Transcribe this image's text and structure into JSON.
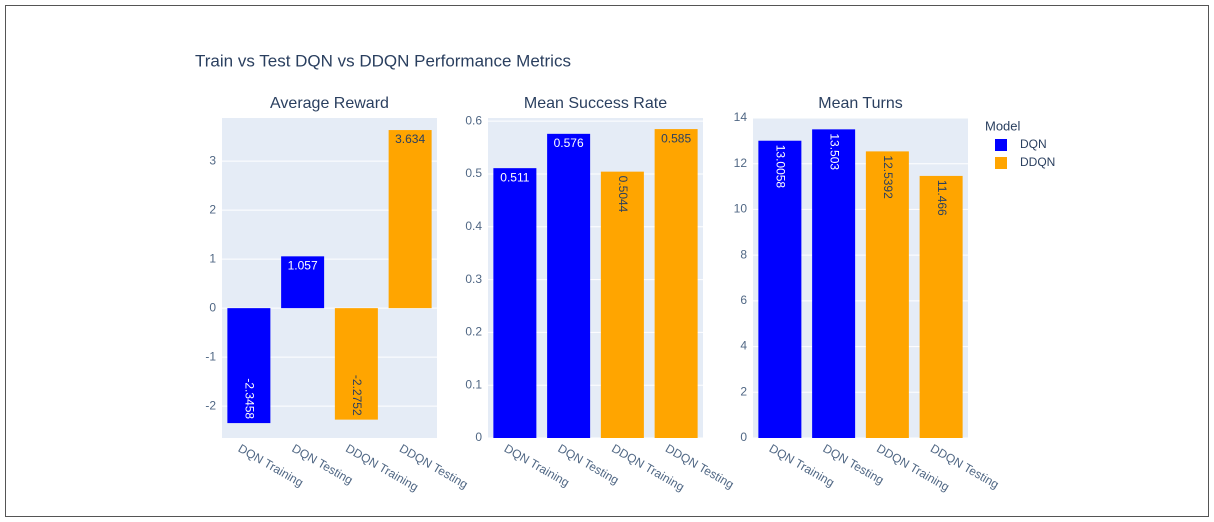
{
  "title": "Train vs Test DQN vs DDQN Performance Metrics",
  "legend_title": "Model",
  "chart_data": [
    {
      "type": "bar",
      "title": "Average Reward",
      "categories": [
        "DQN Training",
        "DQN Testing",
        "DDQN Training",
        "DDQN Testing"
      ],
      "series": [
        {
          "name": "DQN",
          "color": "#0000ff",
          "values": [
            -2.3458,
            1.057,
            null,
            null
          ]
        },
        {
          "name": "DDQN",
          "color": "#ffa500",
          "values": [
            null,
            null,
            -2.2752,
            3.634
          ]
        }
      ],
      "ylim": [
        -2.65,
        3.88
      ],
      "yticks": [
        -2,
        -1,
        0,
        1,
        2,
        3
      ],
      "grid": true
    },
    {
      "type": "bar",
      "title": "Mean Success Rate",
      "categories": [
        "DQN Training",
        "DQN Testing",
        "DDQN Training",
        "DDQN Testing"
      ],
      "series": [
        {
          "name": "DQN",
          "color": "#0000ff",
          "values": [
            0.511,
            0.576,
            null,
            null
          ]
        },
        {
          "name": "DDQN",
          "color": "#ffa500",
          "values": [
            null,
            null,
            0.5044,
            0.585
          ]
        }
      ],
      "ylim": [
        0,
        0.606
      ],
      "yticks": [
        0,
        0.1,
        0.2,
        0.3,
        0.4,
        0.5,
        0.6
      ],
      "grid": true
    },
    {
      "type": "bar",
      "title": "Mean Turns",
      "categories": [
        "DQN Training",
        "DQN Testing",
        "DDQN Training",
        "DDQN Testing"
      ],
      "series": [
        {
          "name": "DQN",
          "color": "#0000ff",
          "values": [
            13.0058,
            13.503,
            null,
            null
          ]
        },
        {
          "name": "DDQN",
          "color": "#ffa500",
          "values": [
            null,
            null,
            12.5392,
            11.466
          ]
        }
      ],
      "ylim": [
        0,
        14
      ],
      "yticks": [
        0,
        2,
        4,
        6,
        8,
        10,
        12,
        14
      ],
      "grid": true
    }
  ]
}
